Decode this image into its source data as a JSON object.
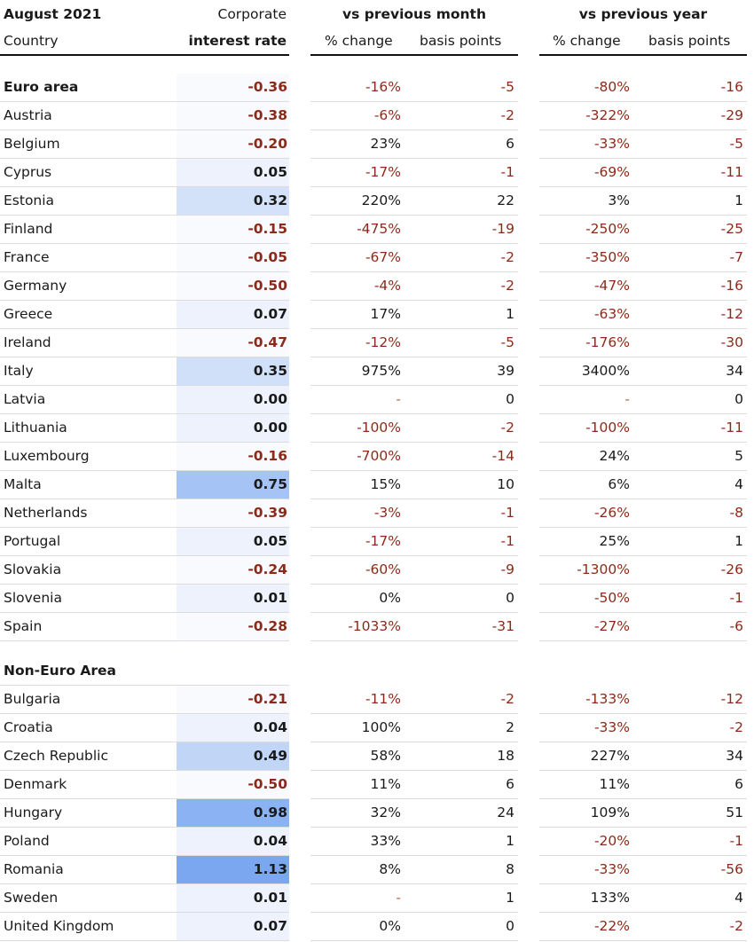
{
  "header": {
    "period": "August 2021",
    "corporate": "Corporate",
    "country": "Country",
    "interest_rate": "interest rate",
    "vs_month": "vs previous month",
    "vs_year": "vs previous year",
    "pct_change": "% change",
    "basis_points": "basis points"
  },
  "colors": {
    "negative_text": "#8b2a1a",
    "heat_low": "#f7f9fd",
    "heat_high": "#7ba7f0"
  },
  "chart_data": {
    "type": "table",
    "columns": [
      "Country",
      "Corporate interest rate",
      "vs previous month % change",
      "vs previous month basis points",
      "vs previous year % change",
      "vs previous year basis points"
    ],
    "sections": [
      {
        "title": "Euro area",
        "title_row": {
          "rate": "-0.36",
          "pm": "-16%",
          "bm": "-5",
          "py": "-80%",
          "by": "-16"
        },
        "rows": [
          {
            "country": "Austria",
            "rate": "-0.38",
            "pm": "-6%",
            "bm": "-2",
            "py": "-322%",
            "by": "-29"
          },
          {
            "country": "Belgium",
            "rate": "-0.20",
            "pm": "23%",
            "bm": "6",
            "py": "-33%",
            "by": "-5"
          },
          {
            "country": "Cyprus",
            "rate": "0.05",
            "pm": "-17%",
            "bm": "-1",
            "py": "-69%",
            "by": "-11"
          },
          {
            "country": "Estonia",
            "rate": "0.32",
            "pm": "220%",
            "bm": "22",
            "py": "3%",
            "by": "1"
          },
          {
            "country": "Finland",
            "rate": "-0.15",
            "pm": "-475%",
            "bm": "-19",
            "py": "-250%",
            "by": "-25"
          },
          {
            "country": "France",
            "rate": "-0.05",
            "pm": "-67%",
            "bm": "-2",
            "py": "-350%",
            "by": "-7"
          },
          {
            "country": "Germany",
            "rate": "-0.50",
            "pm": "-4%",
            "bm": "-2",
            "py": "-47%",
            "by": "-16"
          },
          {
            "country": "Greece",
            "rate": "0.07",
            "pm": "17%",
            "bm": "1",
            "py": "-63%",
            "by": "-12"
          },
          {
            "country": "Ireland",
            "rate": "-0.47",
            "pm": "-12%",
            "bm": "-5",
            "py": "-176%",
            "by": "-30"
          },
          {
            "country": "Italy",
            "rate": "0.35",
            "pm": "975%",
            "bm": "39",
            "py": "3400%",
            "by": "34"
          },
          {
            "country": "Latvia",
            "rate": "0.00",
            "pm": "-",
            "bm": "0",
            "py": "-",
            "by": "0"
          },
          {
            "country": "Lithuania",
            "rate": "0.00",
            "pm": "-100%",
            "bm": "-2",
            "py": "-100%",
            "by": "-11"
          },
          {
            "country": "Luxembourg",
            "rate": "-0.16",
            "pm": "-700%",
            "bm": "-14",
            "py": "24%",
            "by": "5"
          },
          {
            "country": "Malta",
            "rate": "0.75",
            "pm": "15%",
            "bm": "10",
            "py": "6%",
            "by": "4"
          },
          {
            "country": "Netherlands",
            "rate": "-0.39",
            "pm": "-3%",
            "bm": "-1",
            "py": "-26%",
            "by": "-8"
          },
          {
            "country": "Portugal",
            "rate": "0.05",
            "pm": "-17%",
            "bm": "-1",
            "py": "25%",
            "by": "1"
          },
          {
            "country": "Slovakia",
            "rate": "-0.24",
            "pm": "-60%",
            "bm": "-9",
            "py": "-1300%",
            "by": "-26"
          },
          {
            "country": "Slovenia",
            "rate": "0.01",
            "pm": "0%",
            "bm": "0",
            "py": "-50%",
            "by": "-1"
          },
          {
            "country": "Spain",
            "rate": "-0.28",
            "pm": "-1033%",
            "bm": "-31",
            "py": "-27%",
            "by": "-6"
          }
        ]
      },
      {
        "title": "Non-Euro Area",
        "title_row": null,
        "rows": [
          {
            "country": "Bulgaria",
            "rate": "-0.21",
            "pm": "-11%",
            "bm": "-2",
            "py": "-133%",
            "by": "-12"
          },
          {
            "country": "Croatia",
            "rate": "0.04",
            "pm": "100%",
            "bm": "2",
            "py": "-33%",
            "by": "-2"
          },
          {
            "country": "Czech Republic",
            "rate": "0.49",
            "pm": "58%",
            "bm": "18",
            "py": "227%",
            "by": "34"
          },
          {
            "country": "Denmark",
            "rate": "-0.50",
            "pm": "11%",
            "bm": "6",
            "py": "11%",
            "by": "6"
          },
          {
            "country": "Hungary",
            "rate": "0.98",
            "pm": "32%",
            "bm": "24",
            "py": "109%",
            "by": "51"
          },
          {
            "country": "Poland",
            "rate": "0.04",
            "pm": "33%",
            "bm": "1",
            "py": "-20%",
            "by": "-1"
          },
          {
            "country": "Romania",
            "rate": "1.13",
            "pm": "8%",
            "bm": "8",
            "py": "-33%",
            "by": "-56"
          },
          {
            "country": "Sweden",
            "rate": "0.01",
            "pm": "-",
            "bm": "1",
            "py": "133%",
            "by": "4"
          },
          {
            "country": "United Kingdom",
            "rate": "0.07",
            "pm": "0%",
            "bm": "0",
            "py": "-22%",
            "by": "-2"
          }
        ]
      }
    ]
  }
}
